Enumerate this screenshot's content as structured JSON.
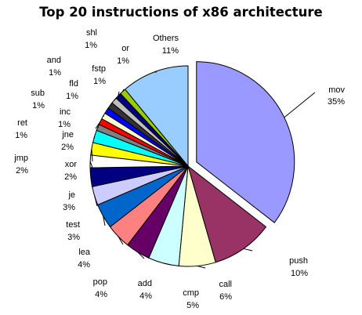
{
  "chart_data": {
    "type": "pie",
    "title": "Top 20 instructions of x86 architecture",
    "exploded": [
      "mov"
    ],
    "slices": [
      {
        "label": "mov",
        "pct_label": "35%",
        "value": 35,
        "color": "#9999ff"
      },
      {
        "label": "push",
        "pct_label": "10%",
        "value": 10,
        "color": "#993366"
      },
      {
        "label": "call",
        "pct_label": "6%",
        "value": 6,
        "color": "#ffffcc"
      },
      {
        "label": "cmp",
        "pct_label": "5%",
        "value": 5,
        "color": "#ccffff"
      },
      {
        "label": "add",
        "pct_label": "4%",
        "value": 4,
        "color": "#660066"
      },
      {
        "label": "pop",
        "pct_label": "4%",
        "value": 4,
        "color": "#ff8080"
      },
      {
        "label": "lea",
        "pct_label": "4%",
        "value": 4,
        "color": "#0066cc"
      },
      {
        "label": "test",
        "pct_label": "3%",
        "value": 3,
        "color": "#ccccff"
      },
      {
        "label": "je",
        "pct_label": "3%",
        "value": 3,
        "color": "#000080"
      },
      {
        "label": "xor",
        "pct_label": "2%",
        "value": 2,
        "color": "#ffffff"
      },
      {
        "label": "jmp",
        "pct_label": "2%",
        "value": 2,
        "color": "#ffff00"
      },
      {
        "label": "jne",
        "pct_label": "2%",
        "value": 2,
        "color": "#00ffff"
      },
      {
        "label": "inc",
        "pct_label": "1%",
        "value": 1,
        "color": "#808080"
      },
      {
        "label": "ret",
        "pct_label": "1%",
        "value": 1,
        "color": "#ff0000"
      },
      {
        "label": "sub",
        "pct_label": "1%",
        "value": 1,
        "color": "#ffffcc"
      },
      {
        "label": "fld",
        "pct_label": "1%",
        "value": 1,
        "color": "#0000ff"
      },
      {
        "label": "and",
        "pct_label": "1%",
        "value": 1,
        "color": "#333333"
      },
      {
        "label": "fstp",
        "pct_label": "1%",
        "value": 1,
        "color": "#c0c0c0"
      },
      {
        "label": "shl",
        "pct_label": "1%",
        "value": 1,
        "color": "#000080"
      },
      {
        "label": "or",
        "pct_label": "1%",
        "value": 1,
        "color": "#99cc00"
      },
      {
        "label": "Others",
        "pct_label": "11%",
        "value": 11,
        "color": "#99ccff"
      }
    ]
  }
}
